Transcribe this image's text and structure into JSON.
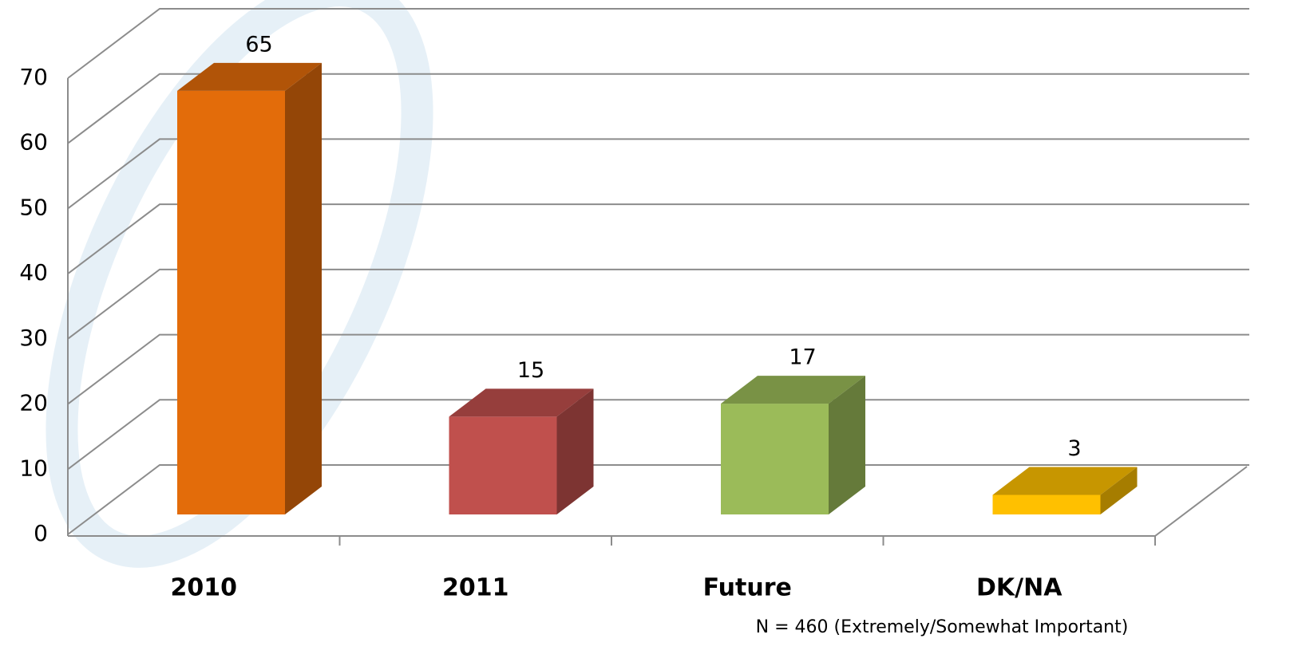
{
  "chart_data": {
    "type": "bar3d",
    "categories": [
      "2010",
      "2011",
      "Future",
      "DK/NA"
    ],
    "values": [
      65,
      15,
      17,
      3
    ],
    "colors": [
      "#e36c0a",
      "#c0504d",
      "#9bbb59",
      "#ffc000"
    ],
    "ylim": [
      0,
      70
    ],
    "yticks": [
      0,
      10,
      20,
      30,
      40,
      50,
      60,
      70
    ],
    "grid": true,
    "note": "N = 460 (Extremely/Somewhat Important)"
  }
}
